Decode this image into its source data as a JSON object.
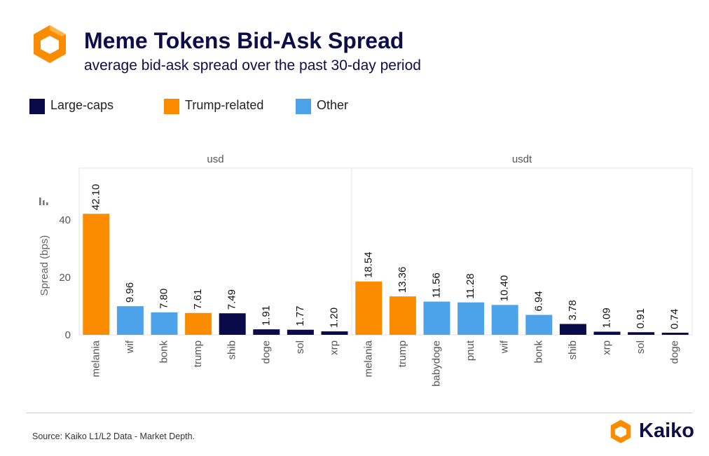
{
  "header": {
    "title": "Meme Tokens Bid-Ask Spread",
    "subtitle": "average bid-ask spread over the past 30-day period",
    "logo_icon": "kaiko-logo-icon"
  },
  "legend": {
    "items": [
      {
        "label": "Large-caps",
        "color": "#0a0a4a"
      },
      {
        "label": "Trump-related",
        "color": "#fb8c00"
      },
      {
        "label": "Other",
        "color": "#4da3ea"
      }
    ]
  },
  "footer": {
    "source": "Source: Kaiko L1/L2 Data - Market Depth.",
    "brand": "Kaiko"
  },
  "chart_data": {
    "type": "bar",
    "ylabel": "Spread (bps)",
    "ylim": [
      0,
      58
    ],
    "yticks": [
      0,
      20,
      40
    ],
    "grid": false,
    "legend_position": "top-left",
    "colors": {
      "Large-caps": "#0a0a4a",
      "Trump-related": "#fb8c00",
      "Other": "#4da3ea"
    },
    "panels": [
      {
        "title": "usd",
        "categories": [
          "melania",
          "wif",
          "bonk",
          "trump",
          "shib",
          "doge",
          "sol",
          "xrp"
        ],
        "values": [
          42.1,
          9.96,
          7.8,
          7.61,
          7.49,
          1.91,
          1.77,
          1.2
        ],
        "labels": [
          "42.10",
          "9.96",
          "7.80",
          "7.61",
          "7.49",
          "1.91",
          "1.77",
          "1.20"
        ],
        "groups": [
          "Trump-related",
          "Other",
          "Other",
          "Trump-related",
          "Large-caps",
          "Large-caps",
          "Large-caps",
          "Large-caps"
        ]
      },
      {
        "title": "usdt",
        "categories": [
          "melania",
          "trump",
          "babydoge",
          "pnut",
          "wif",
          "bonk",
          "shib",
          "xrp",
          "sol",
          "doge"
        ],
        "values": [
          18.54,
          13.36,
          11.56,
          11.28,
          10.4,
          6.94,
          3.78,
          1.09,
          0.91,
          0.74
        ],
        "labels": [
          "18.54",
          "13.36",
          "11.56",
          "11.28",
          "10.40",
          "6.94",
          "3.78",
          "1.09",
          "0.91",
          "0.74"
        ],
        "groups": [
          "Trump-related",
          "Trump-related",
          "Other",
          "Other",
          "Other",
          "Other",
          "Large-caps",
          "Large-caps",
          "Large-caps",
          "Large-caps"
        ]
      }
    ]
  }
}
